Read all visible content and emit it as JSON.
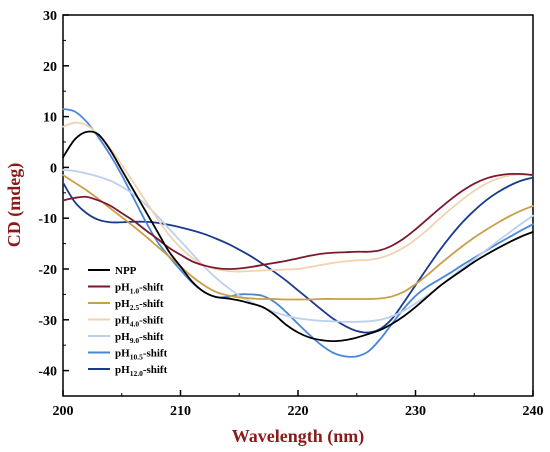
{
  "chart_data": {
    "type": "line",
    "xlabel": "Wavelength (nm)",
    "ylabel": "CD (mdeg)",
    "xlim": [
      200,
      240
    ],
    "ylim": [
      -45,
      30
    ],
    "xticks": [
      200,
      210,
      220,
      230,
      240
    ],
    "yticks": [
      30,
      20,
      10,
      0,
      -10,
      -20,
      -30,
      -40
    ],
    "x_tick_labels": [
      "200",
      "210",
      "220",
      "230",
      "240"
    ],
    "y_tick_labels": [
      "30",
      "20",
      "10",
      "0",
      "-10",
      "-20",
      "-30",
      "-40"
    ],
    "grid": false,
    "legend_position": "bottom-left",
    "series": [
      {
        "name": "NPP",
        "legend_main": "NPP",
        "legend_sub": "",
        "legend_suffix": "",
        "color": "#000000",
        "x": [
          200,
          201,
          202,
          203,
          204,
          205,
          206,
          207,
          208,
          209,
          210,
          211,
          212,
          213,
          214,
          215,
          216,
          217,
          218,
          219,
          220,
          221,
          222,
          223,
          224,
          225,
          226,
          227,
          228,
          229,
          230,
          231,
          232,
          233,
          234,
          235,
          236,
          237,
          238,
          239,
          240
        ],
        "y": [
          2,
          5.5,
          7,
          6.5,
          3.5,
          -0.5,
          -4.5,
          -8.5,
          -12.5,
          -16.5,
          -19.5,
          -22.5,
          -24.5,
          -25.5,
          -25.8,
          -26.2,
          -26.8,
          -27.5,
          -29,
          -31,
          -32.5,
          -33.5,
          -34,
          -34.2,
          -34,
          -33.5,
          -32.8,
          -32,
          -30.8,
          -29.3,
          -27.5,
          -25.5,
          -23.5,
          -21.8,
          -20.2,
          -18.6,
          -17.2,
          -15.9,
          -14.7,
          -13.6,
          -12.7
        ]
      },
      {
        "name": "pH1.0-shift",
        "legend_main": "pH",
        "legend_sub": "1.0",
        "legend_suffix": "-shift",
        "color": "#7a1a2e",
        "x": [
          200,
          201,
          202,
          203,
          204,
          205,
          206,
          207,
          208,
          209,
          210,
          211,
          212,
          213,
          214,
          215,
          216,
          217,
          218,
          219,
          220,
          221,
          222,
          223,
          224,
          225,
          226,
          227,
          228,
          229,
          230,
          231,
          232,
          233,
          234,
          235,
          236,
          237,
          238,
          239,
          240
        ],
        "y": [
          -6.5,
          -6,
          -5.8,
          -6.5,
          -7.5,
          -9,
          -10.5,
          -12.3,
          -14,
          -15.8,
          -17.2,
          -18.5,
          -19.3,
          -19.8,
          -20,
          -19.9,
          -19.6,
          -19.2,
          -18.8,
          -18.4,
          -17.9,
          -17.4,
          -17,
          -16.8,
          -16.7,
          -16.6,
          -16.6,
          -16.3,
          -15.4,
          -14,
          -12.2,
          -10.2,
          -8.2,
          -6.3,
          -4.6,
          -3.2,
          -2.2,
          -1.6,
          -1.3,
          -1.3,
          -1.5
        ]
      },
      {
        "name": "pH2.5-shift",
        "legend_main": "pH",
        "legend_sub": "2.5",
        "legend_suffix": "-shift",
        "color": "#c8a046",
        "x": [
          200,
          201,
          202,
          203,
          204,
          205,
          206,
          207,
          208,
          209,
          210,
          211,
          212,
          213,
          214,
          215,
          216,
          217,
          218,
          219,
          220,
          221,
          222,
          223,
          224,
          225,
          226,
          227,
          228,
          229,
          230,
          231,
          232,
          233,
          234,
          235,
          236,
          237,
          238,
          239,
          240
        ],
        "y": [
          -1.5,
          -3,
          -4.5,
          -6.2,
          -8,
          -9.8,
          -11.6,
          -13.5,
          -15.5,
          -17.5,
          -19.5,
          -21.5,
          -23.2,
          -24.5,
          -25.2,
          -25.6,
          -25.8,
          -25.9,
          -25.9,
          -26,
          -26,
          -26,
          -25.9,
          -25.9,
          -25.9,
          -25.9,
          -25.9,
          -25.8,
          -25.4,
          -24.5,
          -23,
          -21.2,
          -19.2,
          -17.3,
          -15.5,
          -13.8,
          -12.3,
          -10.9,
          -9.6,
          -8.5,
          -7.6
        ]
      },
      {
        "name": "pH4.0-shift",
        "legend_main": "pH",
        "legend_sub": "4.0",
        "legend_suffix": "-shift",
        "color": "#f2d2b0",
        "x": [
          200,
          201,
          202,
          203,
          204,
          205,
          206,
          207,
          208,
          209,
          210,
          211,
          212,
          213,
          214,
          215,
          216,
          217,
          218,
          219,
          220,
          221,
          222,
          223,
          224,
          225,
          226,
          227,
          228,
          229,
          230,
          231,
          232,
          233,
          234,
          235,
          236,
          237,
          238,
          239,
          240
        ],
        "y": [
          8,
          8.8,
          8.3,
          6.5,
          3.8,
          0.5,
          -3,
          -6.5,
          -10,
          -13.2,
          -15.8,
          -17.8,
          -19.2,
          -20,
          -20.4,
          -20.5,
          -20.4,
          -20.3,
          -20.2,
          -20.1,
          -20,
          -19.6,
          -19.2,
          -18.8,
          -18.5,
          -18.3,
          -18.2,
          -17.8,
          -17,
          -15.8,
          -14.2,
          -12.3,
          -10.2,
          -8.2,
          -6.3,
          -4.6,
          -3.2,
          -2.2,
          -1.6,
          -1.4,
          -1.5
        ]
      },
      {
        "name": "pH9.0-shift",
        "legend_main": "pH",
        "legend_sub": "9.0",
        "legend_suffix": "-shift",
        "color": "#bcd0f0",
        "x": [
          200,
          201,
          202,
          203,
          204,
          205,
          206,
          207,
          208,
          209,
          210,
          211,
          212,
          213,
          214,
          215,
          216,
          217,
          218,
          219,
          220,
          221,
          222,
          223,
          224,
          225,
          226,
          227,
          228,
          229,
          230,
          231,
          232,
          233,
          234,
          235,
          236,
          237,
          238,
          239,
          240
        ],
        "y": [
          -0.5,
          -0.7,
          -1.2,
          -1.8,
          -2.6,
          -3.8,
          -5.3,
          -7.2,
          -9.5,
          -12,
          -14.5,
          -17,
          -19.5,
          -21.7,
          -23.6,
          -25.2,
          -26.5,
          -27.6,
          -28.5,
          -29.2,
          -29.7,
          -30,
          -30.2,
          -30.3,
          -30.4,
          -30.4,
          -30.3,
          -30,
          -29.3,
          -28.2,
          -26.8,
          -25.2,
          -23.5,
          -21.7,
          -19.9,
          -18.1,
          -16.3,
          -14.5,
          -12.8,
          -11.1,
          -9.5
        ]
      },
      {
        "name": "pH10.5-shift",
        "legend_main": "pH",
        "legend_sub": "10.5",
        "legend_suffix": "-shift",
        "color": "#4a86d8",
        "x": [
          200,
          201,
          202,
          203,
          204,
          205,
          206,
          207,
          208,
          209,
          210,
          211,
          212,
          213,
          214,
          215,
          216,
          217,
          218,
          219,
          220,
          221,
          222,
          223,
          224,
          225,
          226,
          227,
          228,
          229,
          230,
          231,
          232,
          233,
          234,
          235,
          236,
          237,
          238,
          239,
          240
        ],
        "y": [
          11.5,
          11,
          9,
          6,
          2.5,
          -1.5,
          -6,
          -10.5,
          -14.5,
          -17.5,
          -20.2,
          -22.7,
          -24.5,
          -25.5,
          -25.5,
          -25,
          -25,
          -25.3,
          -26.5,
          -28.5,
          -30.8,
          -33,
          -35,
          -36.5,
          -37.2,
          -37.2,
          -36.2,
          -33.8,
          -30.8,
          -27.8,
          -25.3,
          -23.5,
          -22.1,
          -20.7,
          -19.2,
          -17.8,
          -16.4,
          -15,
          -13.7,
          -12.4,
          -11.2
        ]
      },
      {
        "name": "pH12.0-shift",
        "legend_main": "pH",
        "legend_sub": "12.0",
        "legend_suffix": "-shift",
        "color": "#1a3a8c",
        "x": [
          200,
          201,
          202,
          203,
          204,
          205,
          206,
          207,
          208,
          209,
          210,
          211,
          212,
          213,
          214,
          215,
          216,
          217,
          218,
          219,
          220,
          221,
          222,
          223,
          224,
          225,
          226,
          227,
          228,
          229,
          230,
          231,
          232,
          233,
          234,
          235,
          236,
          237,
          238,
          239,
          240
        ],
        "y": [
          -3,
          -6.8,
          -9,
          -10.3,
          -10.8,
          -10.8,
          -10.7,
          -10.7,
          -10.9,
          -11.3,
          -11.8,
          -12.4,
          -13.1,
          -14,
          -15,
          -16.2,
          -17.5,
          -19,
          -20.6,
          -22.3,
          -24.2,
          -26.1,
          -28,
          -29.8,
          -31.2,
          -32.2,
          -32.5,
          -31.8,
          -29.8,
          -26.6,
          -23.2,
          -19.8,
          -16.5,
          -13.5,
          -10.8,
          -8.5,
          -6.5,
          -4.9,
          -3.6,
          -2.6,
          -2
        ]
      }
    ]
  }
}
